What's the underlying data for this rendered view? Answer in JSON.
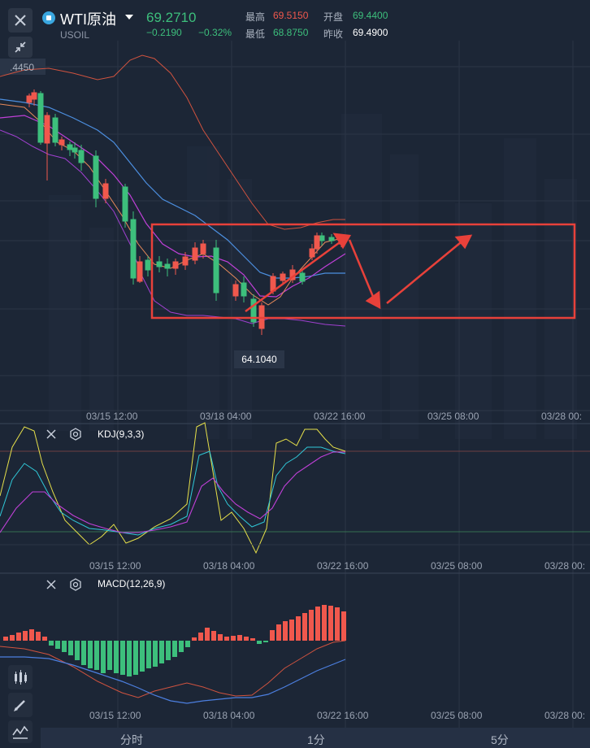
{
  "header": {
    "symbol_name": "WTI原油",
    "symbol_code": "USOIL",
    "last_price": "69.2710",
    "change_abs": "−0.2190",
    "change_pct": "−0.32%",
    "high_label": "最高",
    "high_value": "69.5150",
    "low_label": "最低",
    "low_value": "68.8750",
    "open_label": "开盘",
    "open_value": "69.4400",
    "prev_close_label": "昨收",
    "prev_close_value": "69.4900"
  },
  "main_chart": {
    "partial_price_label": ".4450",
    "min_price_tag": "64.1040",
    "x_ticks": [
      "03/15 12:00",
      "03/18 04:00",
      "03/22 16:00",
      "03/25 08:00",
      "03/28 00:"
    ]
  },
  "kdj": {
    "title": "KDJ(9,3,3)",
    "x_ticks": [
      "03/15 12:00",
      "03/18 04:00",
      "03/22 16:00",
      "03/25 08:00",
      "03/28 00:"
    ]
  },
  "macd": {
    "title": "MACD(12,26,9)",
    "x_ticks": [
      "03/15 12:00",
      "03/18 04:00",
      "03/22 16:00",
      "03/25 08:00",
      "03/28 00:"
    ]
  },
  "tabs": [
    "分时",
    "1分",
    "5分"
  ],
  "colors": {
    "up": "#f0584d",
    "down": "#3dbf7c",
    "background": "#1c2636",
    "annotation": "#e8413a"
  },
  "icons": {
    "close": "close-icon",
    "shrink": "shrink-icon",
    "settings": "gear-icon",
    "candle_tool": "candlestick-icon",
    "draw_tool": "pencil-icon",
    "indicator_tool": "indicator-icon"
  }
}
